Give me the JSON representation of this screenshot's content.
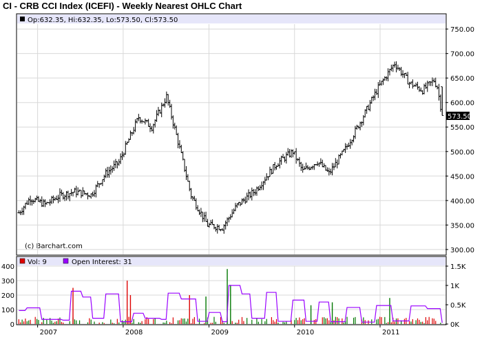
{
  "title": "CI - CRB CCI Index (ICEFI) - Weekly Nearest OHLC Chart",
  "price_header": {
    "text": "Op:632.35, Hi:632.35, Lo:573.50, Cl:573.50"
  },
  "copyright": "(c) Barchart.com",
  "last_price_label": "573.50",
  "volume_header": {
    "vol_label": "Vol: 9",
    "oi_label": "Open Interest: 31"
  },
  "colors": {
    "header_bg": "#e6e6fa",
    "grid": "#d8d8d8",
    "price_bars": "#000000",
    "volume_up": "#007700",
    "volume_down": "#dd0000",
    "open_interest": "#9900ff",
    "volume_swatch": "#dd0000",
    "oi_swatch": "#9900ff"
  },
  "chart_data": [
    {
      "type": "ohlc",
      "frequency": "weekly",
      "ylim": [
        290,
        760
      ],
      "yticks": [
        "300.00",
        "350.00",
        "400.00",
        "450.00",
        "500.00",
        "550.00",
        "600.00",
        "650.00",
        "700.00",
        "750.00"
      ],
      "xticks": [
        "2007",
        "2008",
        "2009",
        "2010",
        "2011"
      ],
      "grid": true,
      "last": {
        "open": 632.35,
        "high": 632.35,
        "low": 573.5,
        "close": 573.5
      },
      "series_closes": [
        {
          "date": "2006-10-13",
          "close": 375
        },
        {
          "date": "2006-12-01",
          "close": 405
        },
        {
          "date": "2007-02-02",
          "close": 392
        },
        {
          "date": "2007-04-06",
          "close": 410
        },
        {
          "date": "2007-06-08",
          "close": 418
        },
        {
          "date": "2007-08-17",
          "close": 412
        },
        {
          "date": "2007-10-19",
          "close": 455
        },
        {
          "date": "2007-12-14",
          "close": 478
        },
        {
          "date": "2008-03-07",
          "close": 570
        },
        {
          "date": "2008-05-02",
          "close": 550
        },
        {
          "date": "2008-07-04",
          "close": 612
        },
        {
          "date": "2008-08-22",
          "close": 520
        },
        {
          "date": "2008-10-17",
          "close": 410
        },
        {
          "date": "2008-12-26",
          "close": 350
        },
        {
          "date": "2009-02-27",
          "close": 345
        },
        {
          "date": "2009-05-01",
          "close": 390
        },
        {
          "date": "2009-07-17",
          "close": 420
        },
        {
          "date": "2009-10-16",
          "close": 475
        },
        {
          "date": "2009-12-25",
          "close": 500
        },
        {
          "date": "2010-02-05",
          "close": 460
        },
        {
          "date": "2010-04-09",
          "close": 480
        },
        {
          "date": "2010-05-28",
          "close": 455
        },
        {
          "date": "2010-08-06",
          "close": 505
        },
        {
          "date": "2010-10-08",
          "close": 560
        },
        {
          "date": "2010-12-24",
          "close": 630
        },
        {
          "date": "2011-03-04",
          "close": 680
        },
        {
          "date": "2011-05-06",
          "close": 640
        },
        {
          "date": "2011-07-01",
          "close": 625
        },
        {
          "date": "2011-08-19",
          "close": 645
        },
        {
          "date": "2011-09-02",
          "close": 632
        },
        {
          "date": "2011-09-23",
          "close": 573.5
        }
      ]
    },
    {
      "type": "bar+line",
      "volume_ylim": [
        0,
        400
      ],
      "volume_yticks": [
        "0",
        "100",
        "200",
        "300",
        "400"
      ],
      "oi_ylim": [
        0,
        1500
      ],
      "oi_yticks": [
        "0K",
        "0.5K",
        "1K",
        "1.5K"
      ],
      "xticks": [
        "2007",
        "2008",
        "2009",
        "2010",
        "2011"
      ],
      "series": [
        {
          "name": "Vol",
          "last": 9
        },
        {
          "name": "Open Interest",
          "last": 31,
          "values": [
            {
              "date": "2006-10-13",
              "oi": 350
            },
            {
              "date": "2006-11-17",
              "oi": 420
            },
            {
              "date": "2007-01-19",
              "oi": 120
            },
            {
              "date": "2007-04-20",
              "oi": 100
            },
            {
              "date": "2007-05-25",
              "oi": 850
            },
            {
              "date": "2007-07-13",
              "oi": 700
            },
            {
              "date": "2007-08-24",
              "oi": 150
            },
            {
              "date": "2007-10-19",
              "oi": 780
            },
            {
              "date": "2007-12-21",
              "oi": 60
            },
            {
              "date": "2008-02-15",
              "oi": 280
            },
            {
              "date": "2008-04-04",
              "oi": 150
            },
            {
              "date": "2008-06-13",
              "oi": 120
            },
            {
              "date": "2008-07-11",
              "oi": 800
            },
            {
              "date": "2008-09-05",
              "oi": 650
            },
            {
              "date": "2008-11-14",
              "oi": 70
            },
            {
              "date": "2009-01-02",
              "oi": 300
            },
            {
              "date": "2009-02-27",
              "oi": 60
            },
            {
              "date": "2009-03-27",
              "oi": 1000
            },
            {
              "date": "2009-05-22",
              "oi": 780
            },
            {
              "date": "2009-07-03",
              "oi": 150
            },
            {
              "date": "2009-09-04",
              "oi": 820
            },
            {
              "date": "2009-10-23",
              "oi": 70
            },
            {
              "date": "2009-12-25",
              "oi": 620
            },
            {
              "date": "2010-02-19",
              "oi": 70
            },
            {
              "date": "2010-04-16",
              "oi": 570
            },
            {
              "date": "2010-06-04",
              "oi": 60
            },
            {
              "date": "2010-08-13",
              "oi": 430
            },
            {
              "date": "2010-10-15",
              "oi": 50
            },
            {
              "date": "2010-12-17",
              "oi": 480
            },
            {
              "date": "2011-02-25",
              "oi": 80
            },
            {
              "date": "2011-05-13",
              "oi": 470
            },
            {
              "date": "2011-07-22",
              "oi": 400
            },
            {
              "date": "2011-09-23",
              "oi": 31
            }
          ]
        }
      ],
      "volume_spikes": [
        {
          "date": "2007-06-01",
          "vol": 250,
          "dir": "down"
        },
        {
          "date": "2008-01-18",
          "vol": 300,
          "dir": "down"
        },
        {
          "date": "2008-02-01",
          "vol": 200,
          "dir": "down"
        },
        {
          "date": "2008-10-10",
          "vol": 200,
          "dir": "down"
        },
        {
          "date": "2008-12-19",
          "vol": 190,
          "dir": "up"
        },
        {
          "date": "2009-03-20",
          "vol": 380,
          "dir": "up"
        },
        {
          "date": "2009-04-03",
          "vol": 270,
          "dir": "up"
        },
        {
          "date": "2010-03-12",
          "vol": 130,
          "dir": "up"
        },
        {
          "date": "2010-06-11",
          "vol": 150,
          "dir": "up"
        },
        {
          "date": "2011-02-11",
          "vol": 180,
          "dir": "up"
        }
      ]
    }
  ]
}
